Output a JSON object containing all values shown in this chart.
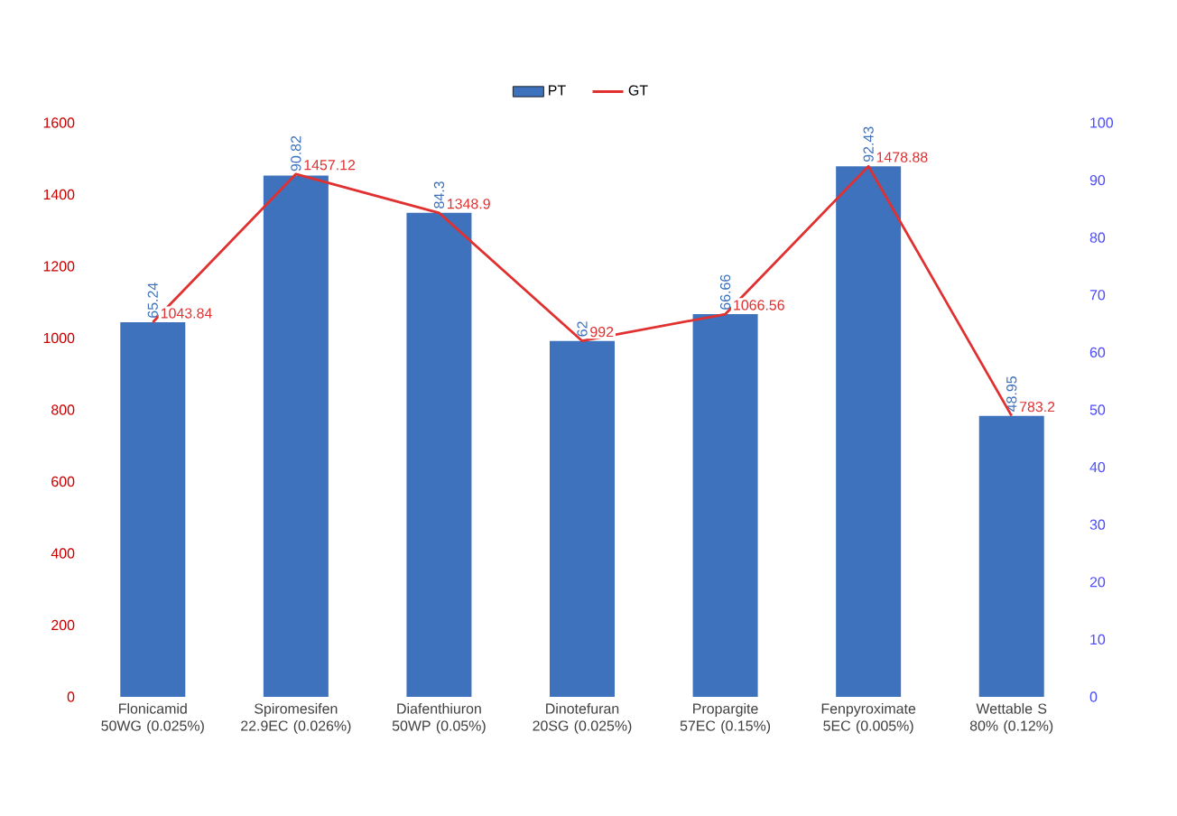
{
  "chart_data": {
    "type": "bar",
    "categories": [
      "Flonicamid 50WG (0.025%)",
      "Spiromesifen 22.9EC (0.026%)",
      "Diafenthiuron 50WP (0.05%)",
      "Dinotefuran 20SG (0.025%)",
      "Propargite 57EC (0.15%)",
      "Fenpyroximate 5EC (0.005%)",
      "Wettable S 80% (0.12%)"
    ],
    "series": [
      {
        "name": "PT",
        "axis": "y2",
        "color": "#3f72bd",
        "values": [
          65.24,
          90.82,
          84.3,
          62,
          66.66,
          92.43,
          48.95
        ],
        "value_labels": [
          "65.24",
          "90.82",
          "84.3",
          "62",
          "66.66",
          "92.43",
          "48.95"
        ]
      },
      {
        "name": "GT",
        "type": "line",
        "axis": "y",
        "color": "#e03030",
        "values": [
          1043.84,
          1457.12,
          1348.9,
          992,
          1066.56,
          1478.88,
          783.2
        ],
        "value_labels": [
          "1043.84",
          "1457.12",
          "1348.9",
          "992",
          "1066.56",
          "1478.88",
          "783.2"
        ]
      }
    ],
    "ylim": [
      0,
      1600
    ],
    "yticks": [
      0,
      200,
      400,
      600,
      800,
      1000,
      1200,
      1400,
      1600
    ],
    "y2lim": [
      0,
      100
    ],
    "y2ticks": [
      0,
      10,
      20,
      30,
      40,
      50,
      60,
      70,
      80,
      90,
      100
    ],
    "legend": "top",
    "grid": false,
    "marker": "none",
    "line_style": "solid"
  }
}
